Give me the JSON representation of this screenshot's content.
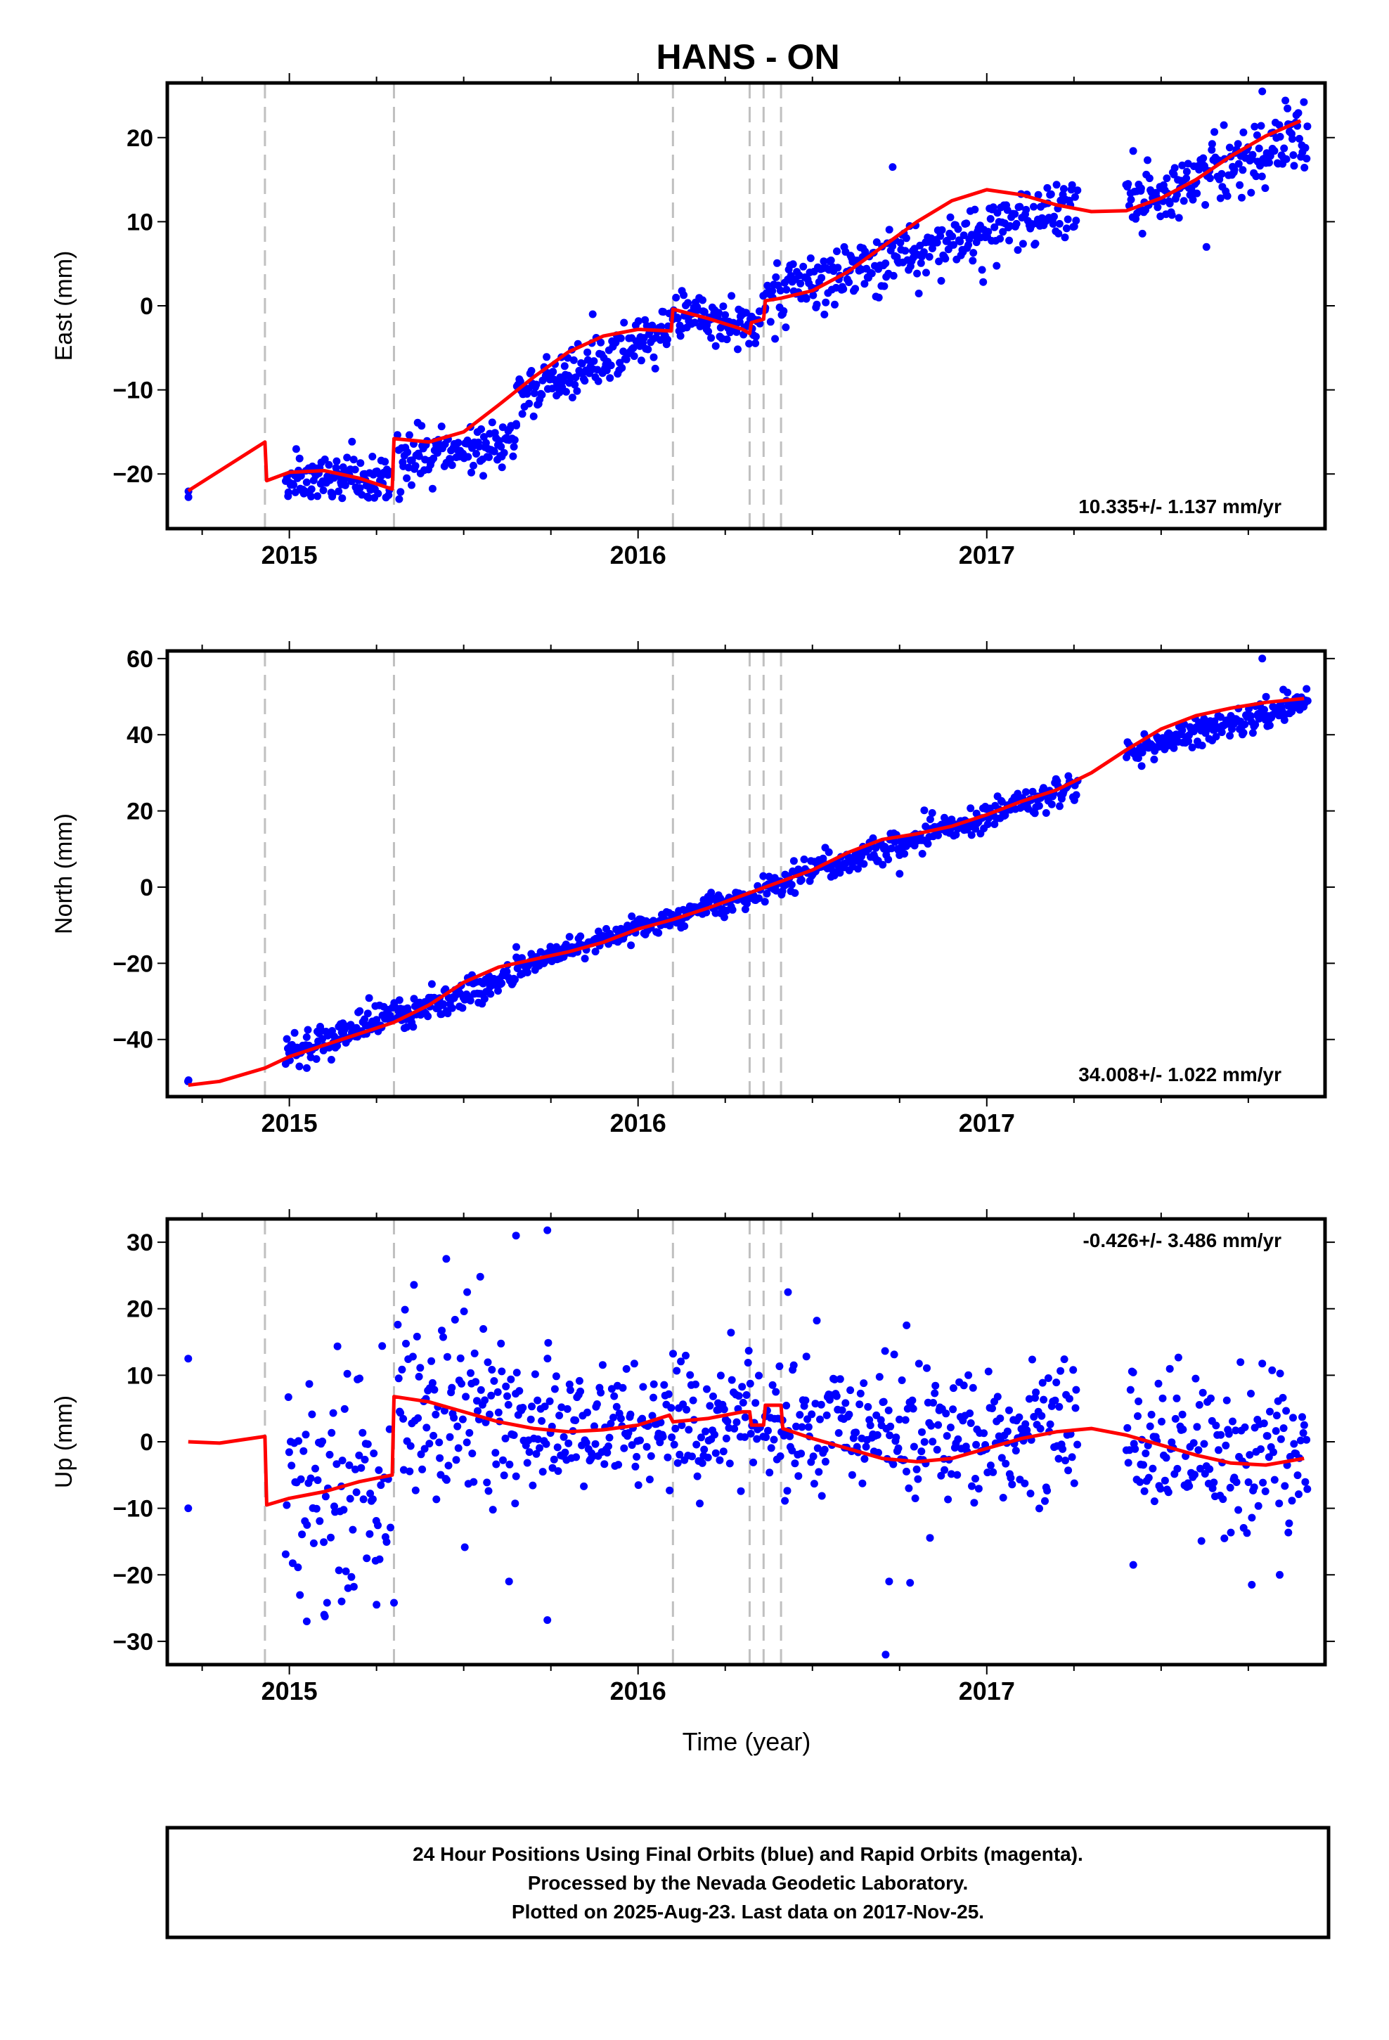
{
  "title": "HANS - ON",
  "x_axis_label": "Time (year)",
  "caption": {
    "line1": "24 Hour Positions Using Final Orbits (blue) and Rapid Orbits (magenta).",
    "line2": "Processed by the Nevada Geodetic Laboratory.",
    "line3": "Plotted on 2025-Aug-23. Last data on 2017-Nov-25."
  },
  "colors": {
    "data_points": "#0000ff",
    "model_line": "#ff0000",
    "event_lines": "#c0c0c0",
    "frame": "#000000"
  },
  "chart_data": [
    {
      "type": "scatter",
      "component": "East",
      "ylabel": "East (mm)",
      "rate": "10.335+/- 1.137 mm/yr",
      "rate_position": "bottom-right",
      "xlim": [
        2014.65,
        2017.97
      ],
      "ylim": [
        -26.5,
        26.5
      ],
      "yticks": [
        -20,
        -10,
        0,
        10,
        20
      ],
      "xticks": [
        2015,
        2016,
        2017
      ],
      "xtick_labels": [
        "2015",
        "2016",
        "2017"
      ],
      "event_lines_x": [
        2014.93,
        2015.3,
        2016.1,
        2016.32,
        2016.36,
        2016.41
      ],
      "model_curve": [
        [
          2014.71,
          -22.0
        ],
        [
          2014.93,
          -16.2
        ],
        [
          2014.935,
          -20.8
        ],
        [
          2015.0,
          -19.8
        ],
        [
          2015.1,
          -19.6
        ],
        [
          2015.2,
          -20.5
        ],
        [
          2015.295,
          -21.8
        ],
        [
          2015.3,
          -15.8
        ],
        [
          2015.4,
          -16.2
        ],
        [
          2015.5,
          -15.0
        ],
        [
          2015.6,
          -11.8
        ],
        [
          2015.7,
          -8.5
        ],
        [
          2015.8,
          -5.5
        ],
        [
          2015.9,
          -3.6
        ],
        [
          2016.0,
          -2.8
        ],
        [
          2016.095,
          -3.0
        ],
        [
          2016.1,
          -0.4
        ],
        [
          2016.2,
          -1.5
        ],
        [
          2016.3,
          -2.8
        ],
        [
          2016.32,
          -3.3
        ],
        [
          2016.325,
          -2.0
        ],
        [
          2016.36,
          -1.6
        ],
        [
          2016.365,
          0.6
        ],
        [
          2016.41,
          0.9
        ],
        [
          2016.5,
          1.8
        ],
        [
          2016.6,
          4.0
        ],
        [
          2016.7,
          7.0
        ],
        [
          2016.8,
          10.0
        ],
        [
          2016.9,
          12.5
        ],
        [
          2017.0,
          13.8
        ],
        [
          2017.1,
          13.2
        ],
        [
          2017.2,
          12.0
        ],
        [
          2017.3,
          11.2
        ],
        [
          2017.4,
          11.3
        ],
        [
          2017.5,
          12.8
        ],
        [
          2017.6,
          15.0
        ],
        [
          2017.7,
          17.8
        ],
        [
          2017.8,
          20.2
        ],
        [
          2017.9,
          22.0
        ]
      ],
      "points_segments": [
        {
          "x": [
            2014.71,
            2014.71
          ],
          "trend": [
            -22.0,
            -22.0
          ],
          "scatter": 0.3,
          "n": 2
        },
        {
          "x": [
            2014.99,
            2015.29
          ],
          "trend": [
            -21.0,
            -20.5
          ],
          "scatter": 1.5,
          "n": 110
        },
        {
          "x": [
            2015.31,
            2015.65
          ],
          "trend": [
            -18.5,
            -15.5
          ],
          "scatter": 1.6,
          "n": 120
        },
        {
          "x": [
            2015.65,
            2016.09
          ],
          "trend": [
            -11.0,
            -2.8
          ],
          "scatter": 1.6,
          "n": 150
        },
        {
          "x": [
            2016.1,
            2016.35
          ],
          "trend": [
            -1.0,
            -2.5
          ],
          "scatter": 1.5,
          "n": 90
        },
        {
          "x": [
            2016.36,
            2017.26
          ],
          "trend": [
            1.0,
            12.0
          ],
          "scatter": 1.8,
          "n": 300
        },
        {
          "x": [
            2017.4,
            2017.92
          ],
          "trend": [
            12.5,
            20.5
          ],
          "scatter": 2.0,
          "n": 180
        }
      ],
      "outliers": [
        [
          2016.73,
          16.5
        ],
        [
          2017.79,
          25.5
        ],
        [
          2017.63,
          7.0
        ],
        [
          2015.61,
          -19.2
        ],
        [
          2015.87,
          -1.0
        ]
      ]
    },
    {
      "type": "scatter",
      "component": "North",
      "ylabel": "North (mm)",
      "rate": "34.008+/- 1.022 mm/yr",
      "rate_position": "bottom-right",
      "xlim": [
        2014.65,
        2017.97
      ],
      "ylim": [
        -55,
        62
      ],
      "yticks": [
        -40,
        -20,
        0,
        20,
        40,
        60
      ],
      "xticks": [
        2015,
        2016,
        2017
      ],
      "xtick_labels": [
        "2015",
        "2016",
        "2017"
      ],
      "event_lines_x": [
        2014.93,
        2015.3,
        2016.1,
        2016.32,
        2016.36,
        2016.41
      ],
      "model_curve": [
        [
          2014.71,
          -52.0
        ],
        [
          2014.8,
          -51.0
        ],
        [
          2014.93,
          -47.5
        ],
        [
          2015.0,
          -44.5
        ],
        [
          2015.1,
          -41.5
        ],
        [
          2015.2,
          -38.5
        ],
        [
          2015.3,
          -35.5
        ],
        [
          2015.4,
          -31.0
        ],
        [
          2015.5,
          -25.0
        ],
        [
          2015.6,
          -21.0
        ],
        [
          2015.7,
          -19.0
        ],
        [
          2015.8,
          -17.0
        ],
        [
          2015.9,
          -14.5
        ],
        [
          2016.0,
          -11.0
        ],
        [
          2016.1,
          -8.5
        ],
        [
          2016.2,
          -5.5
        ],
        [
          2016.32,
          -1.5
        ],
        [
          2016.41,
          1.5
        ],
        [
          2016.5,
          4.5
        ],
        [
          2016.6,
          9.0
        ],
        [
          2016.7,
          12.5
        ],
        [
          2016.8,
          14.0
        ],
        [
          2016.9,
          16.0
        ],
        [
          2017.0,
          19.0
        ],
        [
          2017.1,
          22.5
        ],
        [
          2017.2,
          25.5
        ],
        [
          2017.3,
          30.0
        ],
        [
          2017.4,
          36.0
        ],
        [
          2017.5,
          41.5
        ],
        [
          2017.6,
          45.0
        ],
        [
          2017.7,
          47.0
        ],
        [
          2017.8,
          48.5
        ],
        [
          2017.91,
          49.5
        ]
      ],
      "points_segments": [
        {
          "x": [
            2014.71,
            2014.71
          ],
          "trend": [
            -51.5,
            -51.5
          ],
          "scatter": 0.8,
          "n": 2
        },
        {
          "x": [
            2014.99,
            2015.65
          ],
          "trend": [
            -43.5,
            -23.0
          ],
          "scatter": 2.2,
          "n": 220
        },
        {
          "x": [
            2015.65,
            2016.35
          ],
          "trend": [
            -20.5,
            -1.5
          ],
          "scatter": 1.6,
          "n": 220
        },
        {
          "x": [
            2016.36,
            2017.26
          ],
          "trend": [
            0.0,
            26.5
          ],
          "scatter": 1.8,
          "n": 280
        },
        {
          "x": [
            2017.4,
            2017.92
          ],
          "trend": [
            35.0,
            49.0
          ],
          "scatter": 1.8,
          "n": 180
        }
      ],
      "outliers": [
        [
          2017.79,
          60.0
        ],
        [
          2016.75,
          3.5
        ],
        [
          2017.48,
          33.5
        ],
        [
          2015.05,
          -47.5
        ]
      ]
    },
    {
      "type": "scatter",
      "component": "Up",
      "ylabel": "Up (mm)",
      "rate": "-0.426+/- 3.486 mm/yr",
      "rate_position": "top-right",
      "xlim": [
        2014.65,
        2017.97
      ],
      "ylim": [
        -33.5,
        33.5
      ],
      "yticks": [
        -30,
        -20,
        -10,
        0,
        10,
        20,
        30
      ],
      "xticks": [
        2015,
        2016,
        2017
      ],
      "xtick_labels": [
        "2015",
        "2016",
        "2017"
      ],
      "event_lines_x": [
        2014.93,
        2015.3,
        2016.1,
        2016.32,
        2016.36,
        2016.41
      ],
      "model_curve": [
        [
          2014.71,
          0.0
        ],
        [
          2014.8,
          -0.2
        ],
        [
          2014.93,
          0.8
        ],
        [
          2014.935,
          -9.5
        ],
        [
          2015.0,
          -8.5
        ],
        [
          2015.1,
          -7.5
        ],
        [
          2015.2,
          -6.0
        ],
        [
          2015.295,
          -5.0
        ],
        [
          2015.3,
          6.8
        ],
        [
          2015.4,
          6.0
        ],
        [
          2015.5,
          4.5
        ],
        [
          2015.6,
          3.0
        ],
        [
          2015.7,
          2.0
        ],
        [
          2015.8,
          1.5
        ],
        [
          2015.9,
          1.8
        ],
        [
          2016.0,
          2.5
        ],
        [
          2016.09,
          4.0
        ],
        [
          2016.1,
          3.0
        ],
        [
          2016.2,
          3.5
        ],
        [
          2016.3,
          4.5
        ],
        [
          2016.32,
          4.5
        ],
        [
          2016.325,
          2.5
        ],
        [
          2016.36,
          2.5
        ],
        [
          2016.365,
          5.5
        ],
        [
          2016.41,
          5.5
        ],
        [
          2016.415,
          2.0
        ],
        [
          2016.5,
          0.5
        ],
        [
          2016.6,
          -1.0
        ],
        [
          2016.7,
          -2.5
        ],
        [
          2016.8,
          -3.0
        ],
        [
          2016.9,
          -2.5
        ],
        [
          2017.0,
          -1.0
        ],
        [
          2017.1,
          0.5
        ],
        [
          2017.2,
          1.5
        ],
        [
          2017.3,
          2.0
        ],
        [
          2017.4,
          1.0
        ],
        [
          2017.5,
          -0.5
        ],
        [
          2017.6,
          -2.0
        ],
        [
          2017.7,
          -3.2
        ],
        [
          2017.8,
          -3.5
        ],
        [
          2017.91,
          -2.5
        ]
      ],
      "points_segments": [
        {
          "x": [
            2014.99,
            2015.29
          ],
          "trend": [
            -8.0,
            -6.0
          ],
          "scatter": 8.5,
          "n": 90
        },
        {
          "x": [
            2015.31,
            2015.65
          ],
          "trend": [
            6.5,
            3.0
          ],
          "scatter": 6.5,
          "n": 110
        },
        {
          "x": [
            2015.65,
            2016.35
          ],
          "trend": [
            2.0,
            4.0
          ],
          "scatter": 5.0,
          "n": 220
        },
        {
          "x": [
            2016.36,
            2017.26
          ],
          "trend": [
            2.0,
            1.5
          ],
          "scatter": 5.0,
          "n": 280
        },
        {
          "x": [
            2017.4,
            2017.92
          ],
          "trend": [
            1.0,
            -3.0
          ],
          "scatter": 5.5,
          "n": 160
        }
      ],
      "outliers": [
        [
          2014.71,
          12.5
        ],
        [
          2014.71,
          -10.0
        ],
        [
          2015.65,
          31.0
        ],
        [
          2015.74,
          31.8
        ],
        [
          2015.45,
          27.5
        ],
        [
          2015.51,
          22.5
        ],
        [
          2016.71,
          -32.0
        ],
        [
          2016.43,
          22.5
        ],
        [
          2015.63,
          -21.0
        ],
        [
          2015.74,
          -26.8
        ],
        [
          2015.05,
          -27.0
        ],
        [
          2015.1,
          -26.0
        ],
        [
          2015.15,
          -24.0
        ],
        [
          2015.25,
          -24.5
        ],
        [
          2015.3,
          -24.2
        ],
        [
          2016.77,
          17.5
        ],
        [
          2017.76,
          -21.5
        ],
        [
          2017.84,
          -20.0
        ],
        [
          2017.42,
          -18.5
        ],
        [
          2016.72,
          -21.0
        ],
        [
          2016.78,
          -21.2
        ]
      ]
    }
  ]
}
